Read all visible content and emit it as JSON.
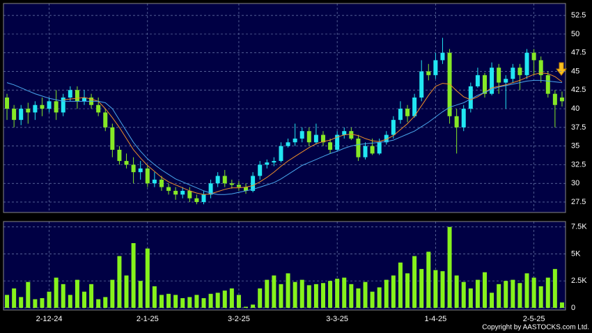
{
  "chart_data": [
    {
      "type": "candlestick",
      "categories": [
        null,
        null,
        null,
        null,
        null,
        null,
        "2-12-24",
        null,
        null,
        null,
        null,
        null,
        null,
        null,
        null,
        null,
        null,
        null,
        null,
        null,
        "2-1-25",
        null,
        null,
        null,
        null,
        null,
        null,
        null,
        null,
        null,
        null,
        null,
        null,
        "3-2-25",
        null,
        null,
        null,
        null,
        null,
        null,
        null,
        null,
        null,
        null,
        null,
        null,
        null,
        "3-3-25",
        null,
        null,
        null,
        null,
        null,
        null,
        null,
        null,
        null,
        null,
        null,
        null,
        null,
        "1-4-25",
        null,
        null,
        null,
        null,
        null,
        null,
        null,
        null,
        null,
        null,
        null,
        null,
        null,
        "2-5-25",
        null,
        null,
        null,
        null
      ],
      "open": [
        41.5,
        40,
        38.5,
        40,
        39.5,
        40.5,
        40,
        41,
        39.5,
        41.5,
        42.5,
        41,
        41.5,
        40.5,
        39.5,
        37.5,
        34.5,
        33,
        32.5,
        31.5,
        32,
        30,
        30.5,
        29.5,
        29,
        28.5,
        29,
        28,
        27.5,
        28.5,
        30,
        31,
        30,
        29.8,
        29.5,
        29,
        31,
        32.5,
        32.8,
        33,
        35,
        35.5,
        36,
        37,
        35.5,
        36.5,
        35.5,
        34.5,
        36.5,
        37,
        36,
        33.5,
        35,
        34,
        35.5,
        36.5,
        38.5,
        40,
        39,
        41.5,
        45,
        44.5,
        46.5,
        47.5,
        39,
        37.5,
        40,
        43,
        44.5,
        42,
        45.5,
        43.5,
        44,
        45.5,
        44.5,
        47.5,
        46.5,
        44.5,
        42,
        41.5
      ],
      "high": [
        42,
        40.5,
        40.5,
        40.8,
        41,
        41.5,
        41.5,
        42.5,
        42,
        43,
        43,
        42.5,
        42,
        41.5,
        40,
        38,
        35,
        34,
        33.5,
        33,
        32.5,
        31.5,
        31,
        30,
        29.5,
        29.5,
        29.5,
        28.5,
        29,
        30.5,
        31.5,
        31.8,
        30.5,
        30.3,
        30,
        31.5,
        33,
        33.2,
        33.5,
        35.5,
        36,
        38,
        37.5,
        37.5,
        38,
        37,
        36,
        37,
        37.5,
        37.5,
        36.5,
        35.5,
        36,
        36,
        37,
        39,
        41,
        40.5,
        42,
        46.5,
        46,
        47.5,
        49.5,
        48,
        40,
        40.5,
        43.5,
        45.5,
        44.8,
        46.2,
        46,
        44.5,
        46,
        46,
        48,
        48,
        47,
        45,
        42.5,
        42.3
      ],
      "low": [
        38.5,
        37.5,
        37.8,
        38,
        38.5,
        39,
        39.5,
        38.5,
        39,
        41,
        40,
        40.5,
        40,
        39,
        37,
        33.5,
        32.5,
        32,
        30,
        30.5,
        29.5,
        29.5,
        29,
        28.5,
        27.8,
        28,
        27.5,
        27.2,
        27.2,
        28,
        29.5,
        29.5,
        29.3,
        29,
        28.6,
        28.8,
        30.5,
        32,
        32.3,
        32.8,
        34.8,
        35,
        35.5,
        35,
        35.2,
        35,
        34,
        34.3,
        36,
        35.8,
        33,
        33.2,
        33.8,
        33.8,
        35.2,
        36,
        38,
        38.2,
        38.8,
        41,
        43.8,
        44,
        46,
        38,
        34,
        37,
        39.5,
        42.8,
        41.5,
        41.8,
        42,
        40,
        43.5,
        42.5,
        44,
        44.5,
        43.5,
        41.5,
        37.5,
        40.3
      ],
      "close": [
        40,
        38.5,
        40,
        39.5,
        40.5,
        40,
        41,
        39.5,
        41.5,
        42.5,
        41,
        41.5,
        40.5,
        39.5,
        37.5,
        34.5,
        33,
        32.5,
        31.5,
        32,
        30,
        30.5,
        29.5,
        29,
        28.5,
        29,
        28,
        27.5,
        28.5,
        30,
        31,
        30,
        29.8,
        29.5,
        29,
        31,
        32.5,
        32.8,
        33,
        35,
        35.5,
        36,
        37,
        35.5,
        36.5,
        35.5,
        34.5,
        36.5,
        37,
        36,
        33.5,
        35,
        34,
        35.5,
        36.5,
        38.5,
        40,
        39,
        41.5,
        45,
        44.5,
        46.5,
        47.5,
        39,
        37.5,
        40,
        43,
        44.5,
        42,
        45.5,
        43.5,
        44,
        45.5,
        44.5,
        47.5,
        46.5,
        44.5,
        42,
        40.5,
        41
      ],
      "up_color": "#22e6f2",
      "down_color": "#86e826",
      "series": [
        {
          "color": "#f0902a",
          "values": [
            null,
            null,
            null,
            null,
            null,
            null,
            null,
            null,
            41.2,
            41.3,
            41.4,
            41.5,
            41.3,
            41,
            40,
            38.8,
            37.5,
            36,
            34.5,
            33.4,
            32.4,
            31.6,
            30.8,
            30.2,
            29.8,
            29.4,
            29,
            28.7,
            28.5,
            28.6,
            28.9,
            29.2,
            29.4,
            29.4,
            29.5,
            29.7,
            30.2,
            30.8,
            31.5,
            32.3,
            33,
            33.6,
            34.2,
            34.8,
            35.3,
            35.6,
            35.8,
            36.2,
            36.5,
            36.6,
            36.4,
            36,
            35.7,
            35.6,
            35.9,
            36.4,
            37.2,
            38,
            39,
            40.4,
            41.8,
            43,
            43.4,
            43.3,
            42.4,
            41.6,
            41.2,
            41.6,
            42.2,
            42.8,
            43,
            43.2,
            43.5,
            43.8,
            44.2,
            44.6,
            44.8,
            44.7,
            44.3,
            43.6
          ]
        },
        {
          "color": "#4aa8ee",
          "values": [
            43.5,
            43.2,
            42.8,
            42.4,
            42,
            41.7,
            41.4,
            41.2,
            41,
            41,
            41,
            41,
            41,
            41,
            40.8,
            40,
            38.5,
            37,
            35.5,
            34.3,
            33.3,
            32.5,
            31.8,
            31.2,
            30.6,
            30.2,
            29.8,
            29.4,
            29,
            28.7,
            28.5,
            28.5,
            28.6,
            28.8,
            29,
            29.2,
            29.5,
            29.8,
            30.1,
            30.6,
            31.2,
            31.8,
            32.4,
            32.8,
            33.2,
            33.6,
            34,
            34.3,
            34.7,
            35,
            35.2,
            35.3,
            35.4,
            35.5,
            35.6,
            35.8,
            36.2,
            36.6,
            37,
            37.6,
            38.2,
            38.9,
            39.6,
            40.2,
            40.5,
            40.8,
            41.3,
            41.8,
            42.2,
            42.6,
            42.9,
            43.1,
            43.3,
            43.5,
            43.7,
            43.8,
            43.8,
            43.7,
            43.6,
            43.5
          ]
        }
      ],
      "ylim": [
        26.1,
        54.1
      ],
      "yticks": [
        27.5,
        30,
        32.5,
        35,
        37.5,
        40,
        42.5,
        45,
        47.5,
        50,
        52.5
      ],
      "grid": true
    },
    {
      "type": "bar",
      "color": "#86f21c",
      "values": [
        1200,
        1800,
        1000,
        2400,
        800,
        900,
        1500,
        2800,
        2200,
        1200,
        2600,
        1500,
        2200,
        800,
        1000,
        2600,
        4800,
        3000,
        6000,
        2500,
        5500,
        2000,
        1200,
        1300,
        1200,
        900,
        1000,
        1200,
        900,
        1300,
        1400,
        1600,
        1800,
        1200,
        100,
        300,
        1800,
        2600,
        3000,
        2200,
        3200,
        2400,
        2600,
        2100,
        2200,
        2300,
        2500,
        2700,
        2800,
        2200,
        1800,
        2400,
        1500,
        1900,
        2600,
        3000,
        4200,
        3200,
        4800,
        3600,
        5200,
        3500,
        3400,
        7500,
        3000,
        2400,
        1800,
        2600,
        3300,
        1400,
        2200,
        2500,
        2600,
        2300,
        3200,
        2800,
        2000,
        2800,
        3600,
        500
      ],
      "ylim": [
        -200,
        8000
      ],
      "yticks": [
        0,
        {
          "value": 2500,
          "label": "2.5K"
        },
        {
          "value": 5000,
          "label": "5K"
        },
        {
          "value": 7500,
          "label": "7.5K"
        }
      ],
      "grid": true,
      "copyright": "Copyright by AASTOCKS.com Ltd."
    }
  ]
}
